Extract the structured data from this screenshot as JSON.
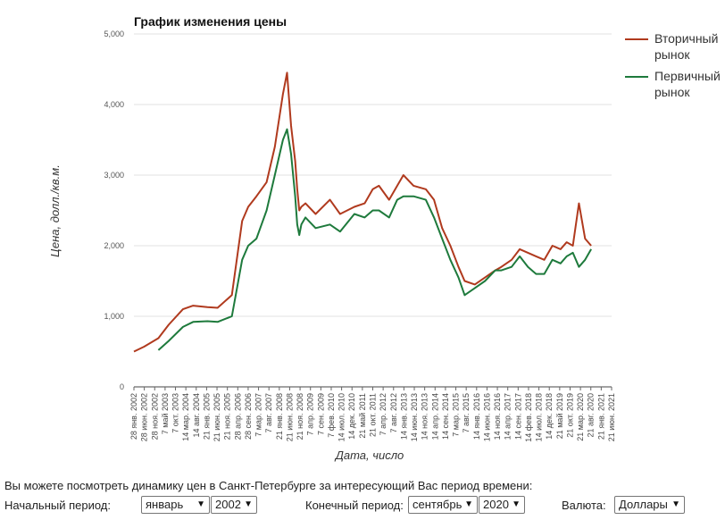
{
  "chart_data": {
    "type": "line",
    "title": "График изменения цены",
    "xlabel": "Дата, число",
    "ylabel": "Цена, долл./кв.м.",
    "ylim": [
      0,
      5000
    ],
    "y_ticks": [
      "0",
      "1,000",
      "2,000",
      "3,000",
      "4,000",
      "5,000"
    ],
    "y_tick_values": [
      0,
      1000,
      2000,
      3000,
      4000,
      5000
    ],
    "grid": true,
    "legend_position": "right",
    "x_ticks": [
      "28 янв. 2002",
      "28 июн. 2002",
      "28 ноя. 2002",
      "7 май 2003",
      "7 окт. 2003",
      "14 мар. 2004",
      "14 авг. 2004",
      "21 янв. 2005",
      "21 июн. 2005",
      "21 ноя. 2005",
      "28 апр. 2006",
      "28 сен. 2006",
      "7 мар. 2007",
      "7 авг. 2007",
      "21 янв. 2008",
      "21 июн. 2008",
      "21 ноя. 2008",
      "7 апр. 2009",
      "7 сен. 2009",
      "7 фев. 2010",
      "14 июл. 2010",
      "14 дек. 2010",
      "21 май 2011",
      "21 окт. 2011",
      "7 апр. 2012",
      "7 авг. 2012",
      "14 янв. 2013",
      "14 июн. 2013",
      "14 ноя. 2013",
      "14 апр. 2014",
      "14 сен. 2014",
      "7 мар. 2015",
      "7 авг. 2015",
      "14 янв. 2016",
      "14 июн. 2016",
      "14 ноя. 2016",
      "14 апр. 2017",
      "14 сен. 2017",
      "14 фев. 2018",
      "14 июл. 2018",
      "14 дек. 2018",
      "21 май 2019",
      "21 окт. 2019",
      "21 мар. 2020",
      "21 авг. 2020",
      "21 янв. 2021",
      "21 июн. 2021"
    ],
    "x": [
      "2002-01",
      "2002-06",
      "2003-01",
      "2003-06",
      "2004-01",
      "2004-06",
      "2005-01",
      "2005-06",
      "2006-01",
      "2006-06",
      "2006-09",
      "2007-01",
      "2007-06",
      "2007-10",
      "2008-02",
      "2008-04",
      "2008-06",
      "2008-08",
      "2008-09",
      "2008-10",
      "2008-11",
      "2009-01",
      "2009-06",
      "2010-01",
      "2010-06",
      "2011-01",
      "2011-06",
      "2011-10",
      "2012-01",
      "2012-06",
      "2012-10",
      "2013-01",
      "2013-06",
      "2013-12",
      "2014-04",
      "2014-08",
      "2014-12",
      "2015-04",
      "2015-07",
      "2015-12",
      "2016-05",
      "2016-10",
      "2017-01",
      "2017-06",
      "2017-10",
      "2018-02",
      "2018-06",
      "2018-10",
      "2019-02",
      "2019-06",
      "2019-09",
      "2019-12",
      "2020-03",
      "2020-06",
      "2020-09"
    ],
    "series": [
      {
        "name": "Вторичный рынок",
        "color": "#b03a1e",
        "values": [
          500,
          570,
          690,
          880,
          1100,
          1150,
          1130,
          1120,
          1300,
          2350,
          2550,
          2700,
          2900,
          3400,
          4150,
          4450,
          3700,
          3200,
          2800,
          2500,
          2550,
          2600,
          2450,
          2650,
          2450,
          2550,
          2600,
          2800,
          2850,
          2650,
          2850,
          3000,
          2850,
          2800,
          2650,
          2250,
          2000,
          1700,
          1500,
          1450,
          1550,
          1650,
          1700,
          1800,
          1950,
          1900,
          1850,
          1800,
          2000,
          1950,
          2050,
          2000,
          2600,
          2100,
          2000
        ]
      },
      {
        "name": "Первичный рынок",
        "color": "#1e7a3c",
        "values": [
          null,
          null,
          520,
          650,
          850,
          920,
          930,
          920,
          1000,
          1800,
          2000,
          2100,
          2500,
          3000,
          3500,
          3650,
          3300,
          2700,
          2300,
          2150,
          2300,
          2400,
          2250,
          2300,
          2200,
          2450,
          2400,
          2500,
          2500,
          2400,
          2650,
          2700,
          2700,
          2650,
          2400,
          2100,
          1800,
          1550,
          1300,
          1400,
          1500,
          1650,
          1650,
          1700,
          1850,
          1700,
          1600,
          1600,
          1800,
          1750,
          1850,
          1900,
          1700,
          1800,
          1950
        ]
      }
    ]
  },
  "controls": {
    "description": "Вы можете посмотреть динамику цен в Санкт-Петербурге за интересующий Вас период времени:",
    "start_label": "Начальный период:",
    "start_month": "январь",
    "start_year": "2002",
    "end_label": "Конечный период:",
    "end_month": "сентябрь",
    "end_year": "2020",
    "currency_label": "Валюта:",
    "currency": "Доллары"
  }
}
